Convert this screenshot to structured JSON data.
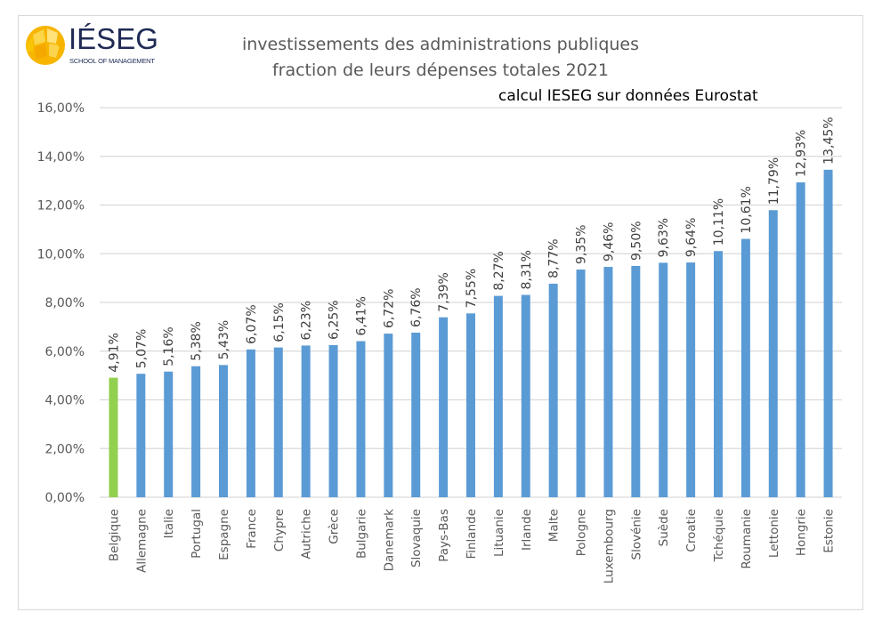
{
  "logo": {
    "name": "IÉSEG",
    "tagline": "SCHOOL OF MANAGEMENT"
  },
  "chart_data": {
    "type": "bar",
    "title": [
      "investissements des administrations publiques",
      "fraction de leurs dépenses totales 2021"
    ],
    "subtitle": "calcul IESEG sur données Eurostat",
    "xlabel": "",
    "ylabel": "",
    "ylim": [
      0,
      16
    ],
    "grid": true,
    "yticks": [
      0,
      2,
      4,
      6,
      8,
      10,
      12,
      14,
      16
    ],
    "ytick_labels": [
      "0,00%",
      "2,00%",
      "4,00%",
      "6,00%",
      "8,00%",
      "10,00%",
      "12,00%",
      "14,00%",
      "16,00%"
    ],
    "categories": [
      "Belgique",
      "Allemagne",
      "Italie",
      "Portugal",
      "Espagne",
      "France",
      "Chypre",
      "Autriche",
      "Grèce",
      "Bulgarie",
      "Danemark",
      "Slovaquie",
      "Pays-Bas",
      "Finlande",
      "Lituanie",
      "Irlande",
      "Malte",
      "Pologne",
      "Luxembourg",
      "Slovénie",
      "Suède",
      "Croatie",
      "Tchéquie",
      "Roumanie",
      "Lettonie",
      "Hongrie",
      "Estonie"
    ],
    "values": [
      4.91,
      5.07,
      5.16,
      5.38,
      5.43,
      6.07,
      6.15,
      6.23,
      6.25,
      6.41,
      6.72,
      6.76,
      7.39,
      7.55,
      8.27,
      8.31,
      8.77,
      9.35,
      9.46,
      9.5,
      9.63,
      9.64,
      10.11,
      10.61,
      11.79,
      12.93,
      13.45
    ],
    "data_labels": [
      "4,91%",
      "5,07%",
      "5,16%",
      "5,38%",
      "5,43%",
      "6,07%",
      "6,15%",
      "6,23%",
      "6,25%",
      "6,41%",
      "6,72%",
      "6,76%",
      "7,39%",
      "7,55%",
      "8,27%",
      "8,31%",
      "8,77%",
      "9,35%",
      "9,46%",
      "9,50%",
      "9,63%",
      "9,64%",
      "10,11%",
      "10,61%",
      "11,79%",
      "12,93%",
      "13,45%"
    ],
    "colors": {
      "highlight": "#92d050",
      "default": "#5b9bd5",
      "grid": "#d9d9d9"
    },
    "highlight_index": 0
  }
}
